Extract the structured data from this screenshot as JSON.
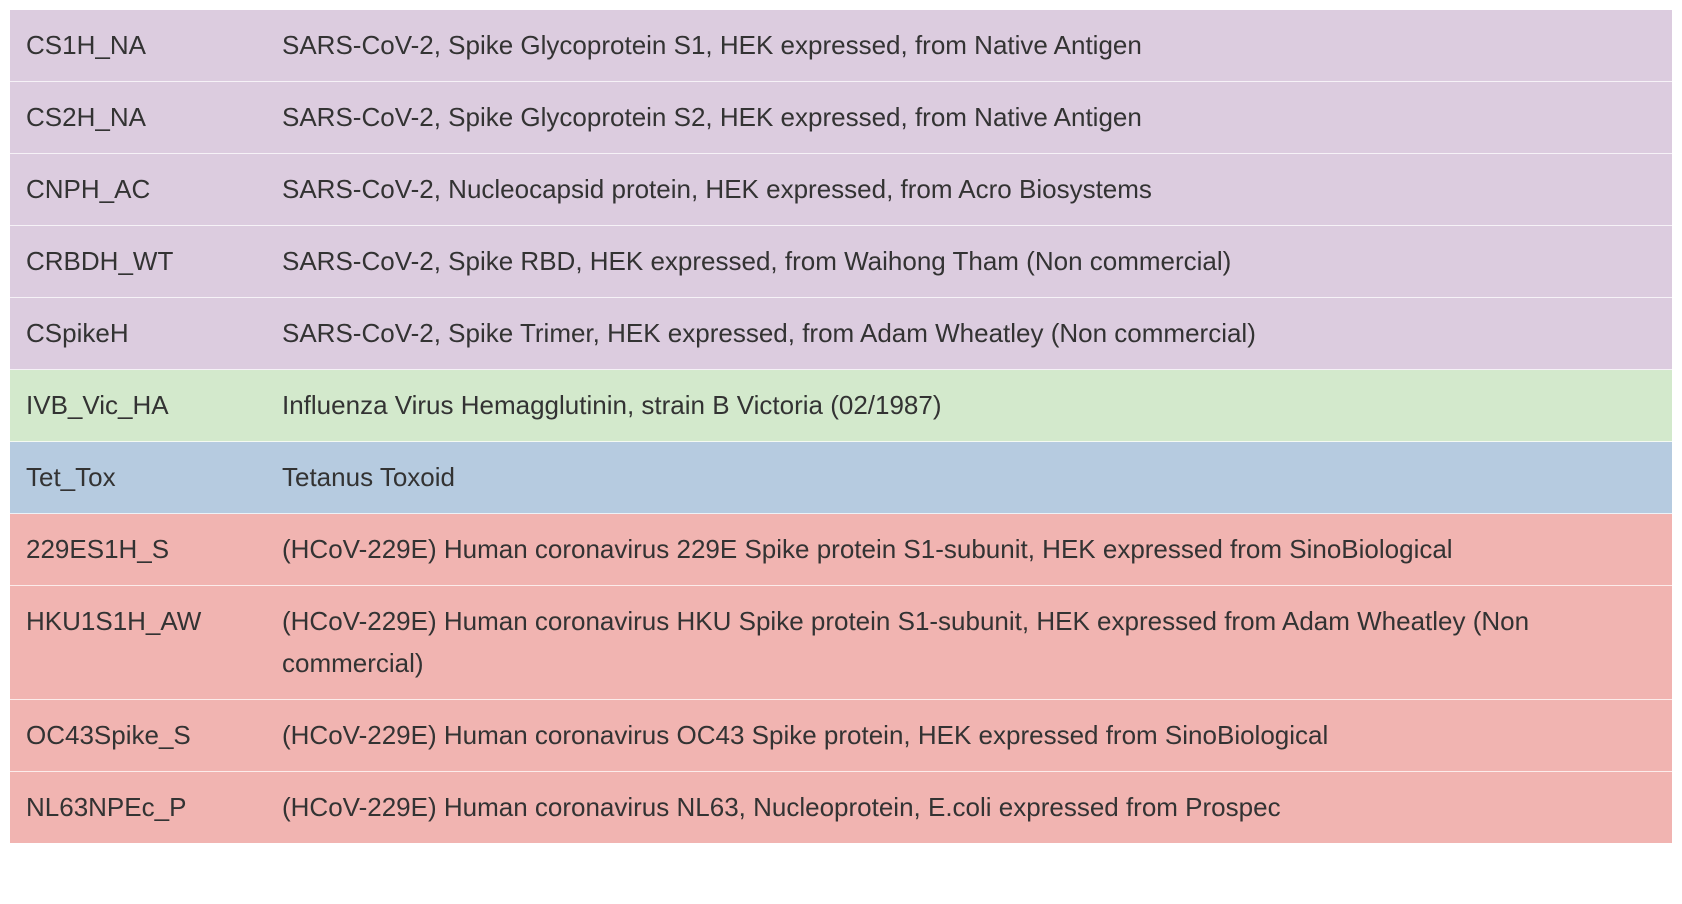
{
  "table": {
    "rows": [
      {
        "code": "CS1H_NA",
        "description": "SARS-CoV-2, Spike Glycoprotein S1, HEK expressed, from Native Antigen",
        "group": "sars",
        "color": "#dcccdf"
      },
      {
        "code": "CS2H_NA",
        "description": "SARS-CoV-2, Spike Glycoprotein S2, HEK expressed, from Native Antigen",
        "group": "sars",
        "color": "#dcccdf"
      },
      {
        "code": "CNPH_AC",
        "description": "SARS-CoV-2, Nucleocapsid protein, HEK expressed, from Acro Biosystems",
        "group": "sars",
        "color": "#dcccdf"
      },
      {
        "code": "CRBDH_WT",
        "description": "SARS-CoV-2, Spike RBD, HEK expressed, from Waihong Tham (Non commercial)",
        "group": "sars",
        "color": "#dcccdf"
      },
      {
        "code": "CSpikeH",
        "description": "SARS-CoV-2, Spike Trimer, HEK expressed, from Adam Wheatley (Non commercial)",
        "group": "sars",
        "color": "#dcccdf"
      },
      {
        "code": "IVB_Vic_HA",
        "description": "Influenza Virus Hemagglutinin, strain B Victoria (02/1987)",
        "group": "flu",
        "color": "#d3e9cc"
      },
      {
        "code": "Tet_Tox",
        "description": "Tetanus Toxoid",
        "group": "tet",
        "color": "#b6cbe0"
      },
      {
        "code": "229ES1H_S",
        "description": "(HCoV-229E) Human coronavirus 229E Spike protein S1-subunit, HEK expressed from SinoBiological",
        "group": "hcov",
        "color": "#f1b4b1"
      },
      {
        "code": "HKU1S1H_AW",
        "description": "(HCoV-229E) Human coronavirus HKU Spike protein S1-subunit, HEK expressed from Adam Wheatley (Non commercial)",
        "group": "hcov",
        "color": "#f1b4b1"
      },
      {
        "code": "OC43Spike_S",
        "description": "(HCoV-229E) Human coronavirus OC43 Spike protein, HEK expressed from SinoBiological",
        "group": "hcov",
        "color": "#f1b4b1"
      },
      {
        "code": "NL63NPEc_P",
        "description": "(HCoV-229E) Human coronavirus NL63, Nucleoprotein, E.coli expressed from Prospec",
        "group": "hcov",
        "color": "#f1b4b1"
      }
    ]
  }
}
